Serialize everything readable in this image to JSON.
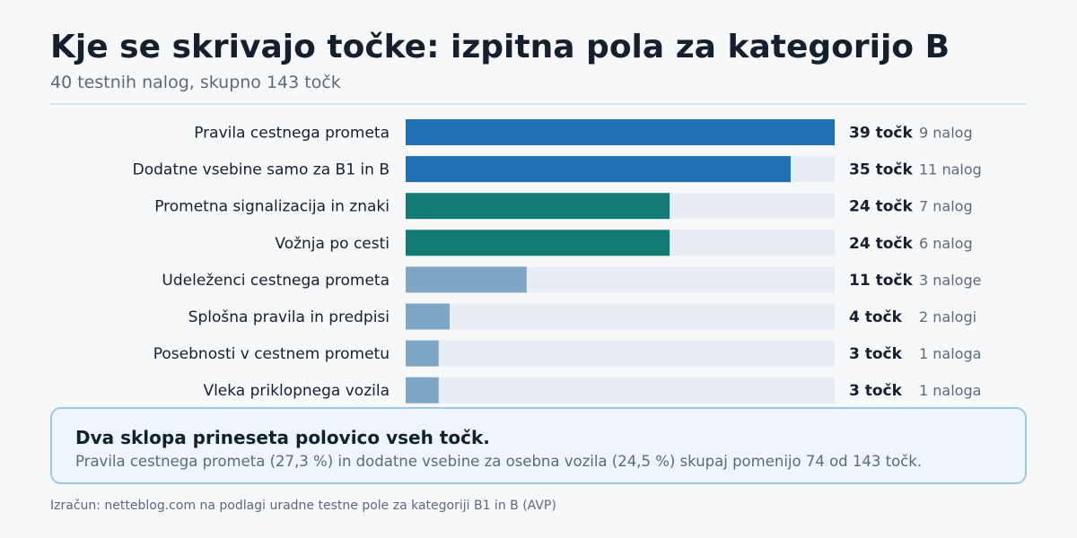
{
  "header": {
    "title": "Kje se skrivajo točke: izpitna pola za kategorijo B",
    "subtitle": "40 testnih nalog, skupno 143 točk"
  },
  "chart_data": {
    "type": "bar",
    "orientation": "horizontal",
    "categories": [
      "Pravila cestnega prometa",
      "Dodatne vsebine samo za B1 in B",
      "Prometna signalizacija in znaki",
      "Vožnja po cesti",
      "Udeleženci cestnega prometa",
      "Splošna pravila in predpisi",
      "Posebnosti v cestnem prometu",
      "Vleka priklopnega vozila"
    ],
    "values": [
      39,
      35,
      24,
      24,
      11,
      4,
      3,
      3
    ],
    "value_labels": [
      "39 točk",
      "35 točk",
      "24 točk",
      "24 točk",
      "11 točk",
      "4 točk",
      "3 točk",
      "3 točk"
    ],
    "task_labels": [
      "9 nalog",
      "11 nalog",
      "7 nalog",
      "6 nalog",
      "3 naloge",
      "2 nalogi",
      "1 naloga",
      "1 naloga"
    ],
    "xlim": [
      0,
      39
    ],
    "grid": false,
    "colors": {
      "high": "#2170b3",
      "mid": "#127c74",
      "low": "#7fa7c5",
      "track": "#e8edf3"
    },
    "bar_color_groups": [
      "high",
      "high",
      "mid",
      "mid",
      "low",
      "low",
      "low",
      "low"
    ]
  },
  "callout": {
    "headline": "Dva sklopa prineseta polovico vseh točk.",
    "body": "Pravila cestnega prometa (27,3 %) in dodatne vsebine za osebna vozila (24,5 %) skupaj pomenijo 74 od 143 točk."
  },
  "footer": {
    "source": "Izračun: netteblog.com na podlagi uradne testne pole za kategoriji B1 in B (AVP)"
  }
}
